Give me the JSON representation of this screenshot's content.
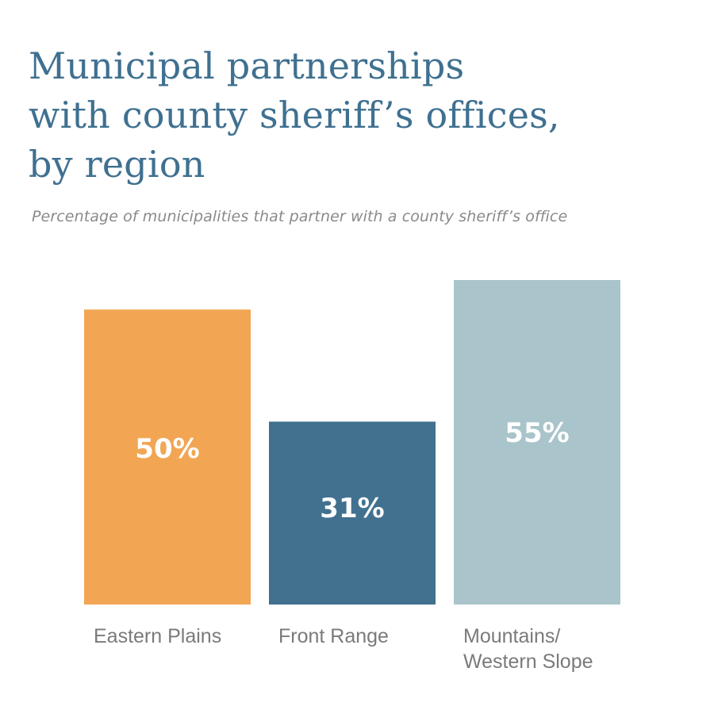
{
  "title": {
    "lines": [
      "Municipal partnerships",
      "with county sheriff’s offices,",
      "by region"
    ]
  },
  "subtitle": "Percentage of municipalities that partner with a county sheriff’s office",
  "chart_data": {
    "type": "bar",
    "title": "Municipal partnerships with county sheriff’s offices, by region",
    "subtitle": "Percentage of municipalities that partner with a county sheriff’s office",
    "categories": [
      "Eastern Plains",
      "Front Range",
      "Mountains/ Western Slope"
    ],
    "category_label_lines": [
      [
        "Eastern Plains"
      ],
      [
        "Front Range"
      ],
      [
        "Mountains/",
        "Western Slope"
      ]
    ],
    "values": [
      50,
      31,
      55
    ],
    "data_labels": [
      "50%",
      "31%",
      "55%"
    ],
    "colors": [
      "#f2a654",
      "#41718f",
      "#a9c4ca"
    ],
    "ylim": [
      0,
      55
    ],
    "grid": false,
    "legend": "none",
    "xlabel": "",
    "ylabel": ""
  }
}
